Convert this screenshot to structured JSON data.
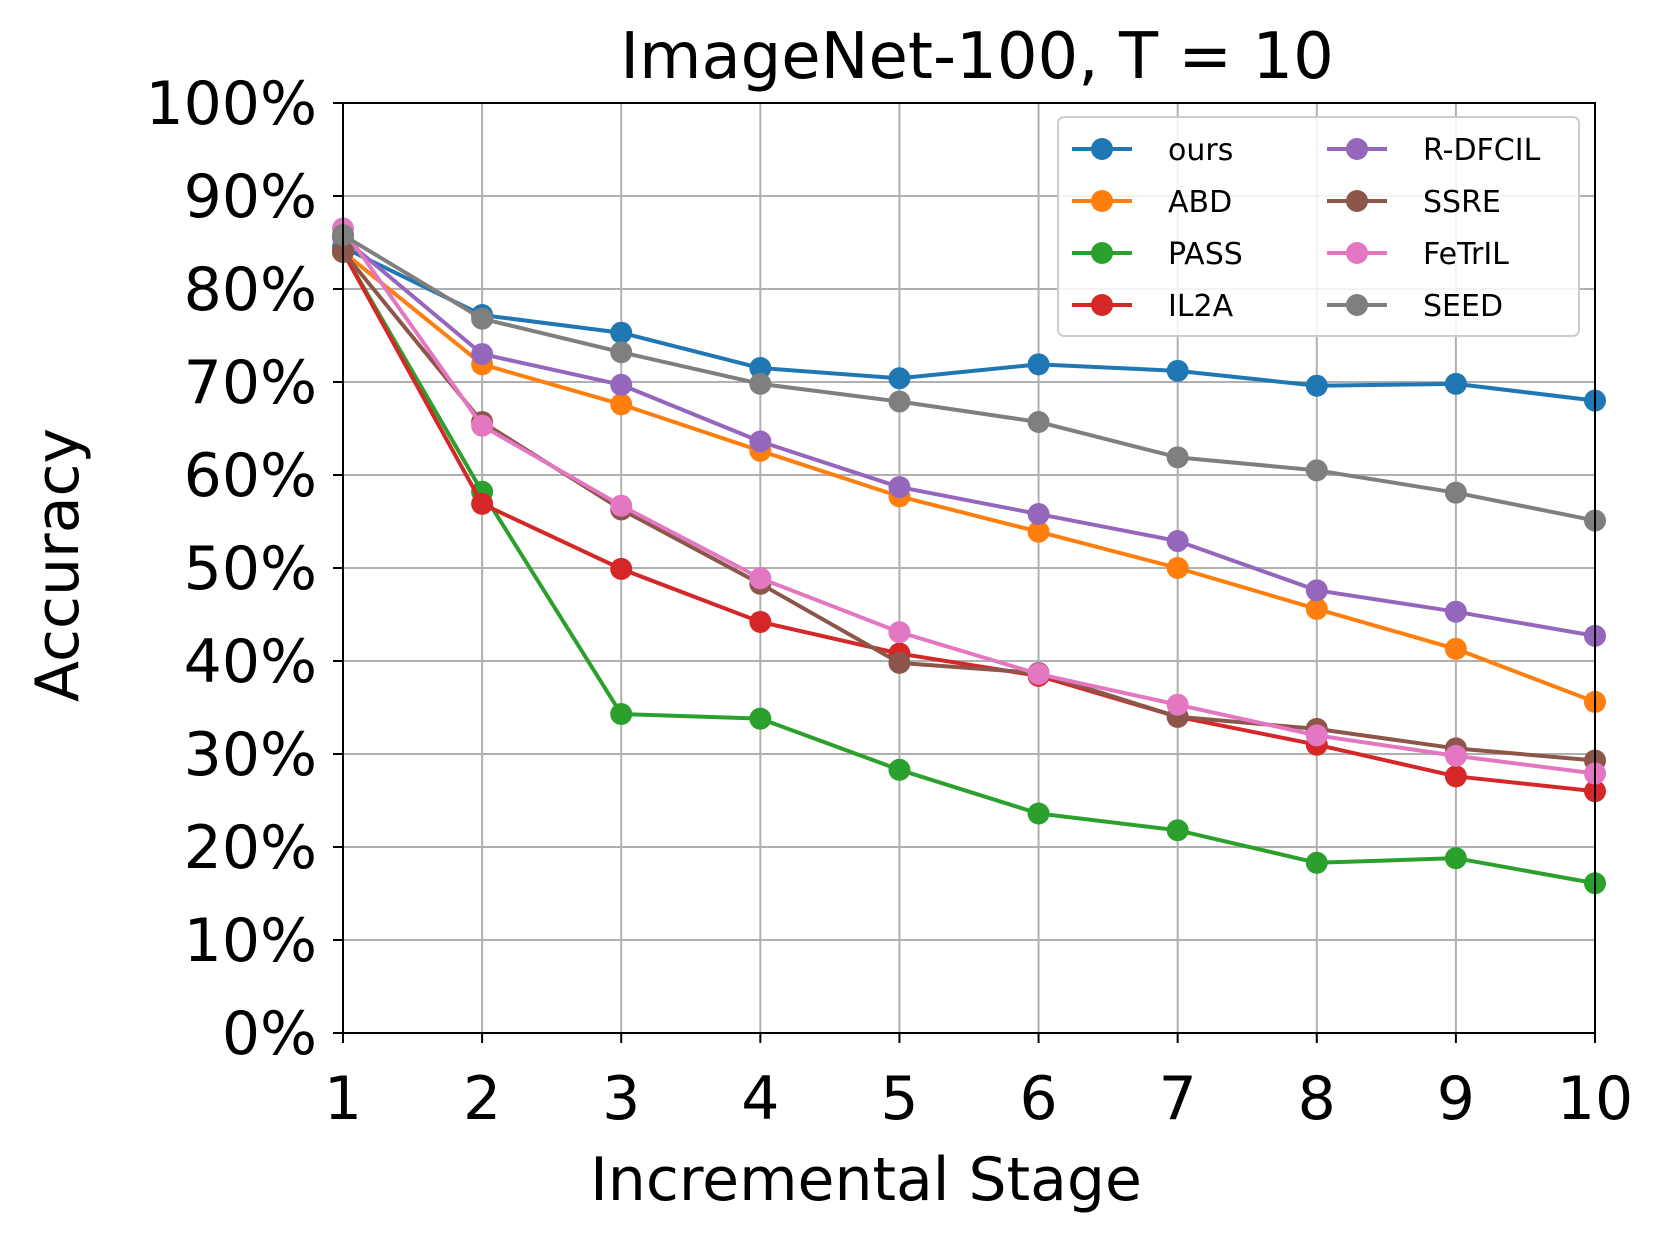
{
  "chart_data": {
    "type": "line",
    "title": "ImageNet-100, T = 10",
    "xlabel": "Incremental Stage",
    "ylabel": "Accuracy",
    "x": [
      1,
      2,
      3,
      4,
      5,
      6,
      7,
      8,
      9,
      10
    ],
    "xlim": [
      1,
      10
    ],
    "ylim": [
      0,
      100
    ],
    "yticks": [
      0,
      10,
      20,
      30,
      40,
      50,
      60,
      70,
      80,
      90,
      100
    ],
    "ytick_labels": [
      "0%",
      "10%",
      "20%",
      "30%",
      "40%",
      "50%",
      "60%",
      "70%",
      "80%",
      "90%",
      "100%"
    ],
    "xtick_labels": [
      "1",
      "2",
      "3",
      "4",
      "5",
      "6",
      "7",
      "8",
      "9",
      "10"
    ],
    "grid": true,
    "legend_position": "top-right",
    "legend_columns": 2,
    "series": [
      {
        "name": "ours",
        "color": "#1f77b4",
        "values": [
          84.5,
          77.2,
          75.3,
          71.5,
          70.4,
          71.9,
          71.2,
          69.6,
          69.8,
          68.0
        ]
      },
      {
        "name": "ABD",
        "color": "#ff7f0e",
        "values": [
          84.0,
          71.9,
          67.6,
          62.6,
          57.7,
          53.9,
          50.0,
          45.6,
          41.3,
          35.6
        ]
      },
      {
        "name": "PASS",
        "color": "#2ca02c",
        "values": [
          84.0,
          58.2,
          34.3,
          33.8,
          28.3,
          23.6,
          21.8,
          18.3,
          18.8,
          16.1
        ]
      },
      {
        "name": "IL2A",
        "color": "#d62728",
        "values": [
          84.0,
          56.9,
          49.9,
          44.2,
          40.8,
          38.4,
          34.0,
          31.0,
          27.6,
          26.0
        ]
      },
      {
        "name": "R-DFCIL",
        "color": "#9467bd",
        "values": [
          85.5,
          73.0,
          69.7,
          63.6,
          58.7,
          55.8,
          52.9,
          47.6,
          45.3,
          42.7
        ]
      },
      {
        "name": "SSRE",
        "color": "#8c564b",
        "values": [
          84.0,
          65.7,
          56.3,
          48.3,
          39.8,
          38.7,
          34.0,
          32.7,
          30.6,
          29.3
        ]
      },
      {
        "name": "FeTrIL",
        "color": "#e377c2",
        "values": [
          86.5,
          65.3,
          56.7,
          48.9,
          43.1,
          38.6,
          35.3,
          32.0,
          29.8,
          27.9
        ]
      },
      {
        "name": "SEED",
        "color": "#7f7f7f",
        "values": [
          85.8,
          76.8,
          73.2,
          69.8,
          67.9,
          65.7,
          61.9,
          60.5,
          58.1,
          55.1
        ]
      }
    ]
  }
}
